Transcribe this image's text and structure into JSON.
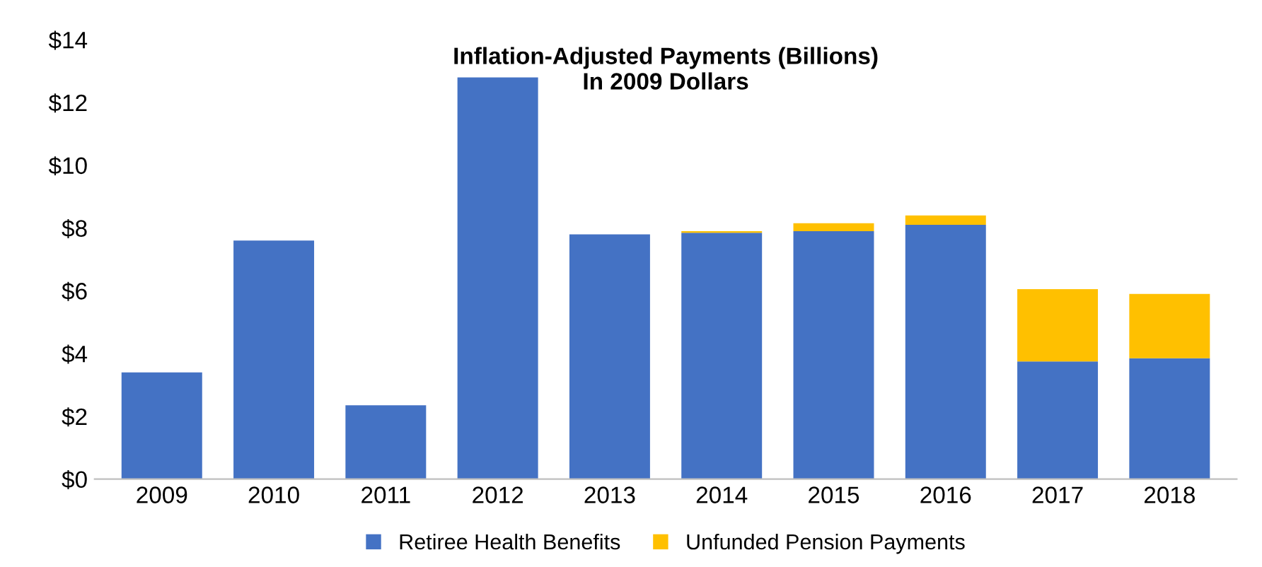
{
  "chart_data": {
    "type": "bar",
    "title": "Inflation-Adjusted Payments (Billions)\nIn 2009 Dollars",
    "stacked": true,
    "categories": [
      "2009",
      "2010",
      "2011",
      "2012",
      "2013",
      "2014",
      "2015",
      "2016",
      "2017",
      "2018"
    ],
    "series": [
      {
        "name": "Retiree Health Benefits",
        "color": "#4472c4",
        "values": [
          3.4,
          7.6,
          2.35,
          12.8,
          7.8,
          7.85,
          7.9,
          8.1,
          3.75,
          3.85
        ]
      },
      {
        "name": "Unfunded Pension Payments",
        "color": "#ffc000",
        "values": [
          0,
          0,
          0,
          0,
          0,
          0.05,
          0.25,
          0.3,
          2.3,
          2.05
        ]
      }
    ],
    "ylim": [
      0,
      14
    ],
    "yticks": [
      {
        "value": 0,
        "label": "$0"
      },
      {
        "value": 2,
        "label": "$2"
      },
      {
        "value": 4,
        "label": "$4"
      },
      {
        "value": 6,
        "label": "$6"
      },
      {
        "value": 8,
        "label": "$8"
      },
      {
        "value": 10,
        "label": "$10"
      },
      {
        "value": 12,
        "label": "$12"
      },
      {
        "value": 14,
        "label": "$14"
      }
    ],
    "grid": false,
    "legend": "bottom"
  }
}
